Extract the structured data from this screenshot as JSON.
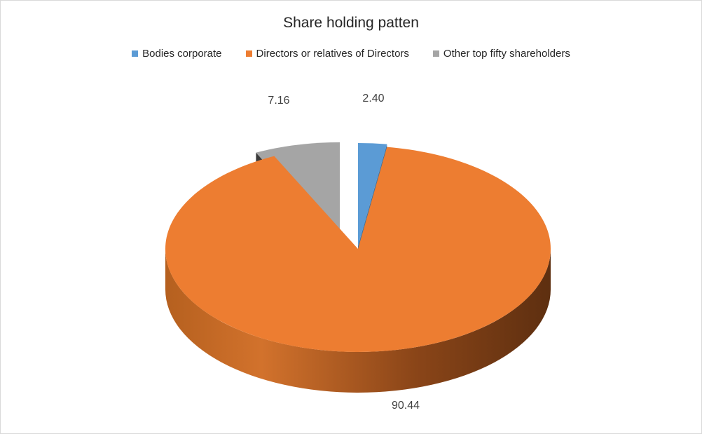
{
  "chart_data": {
    "type": "pie",
    "title": "Share holding patten",
    "categories": [
      "Bodies corporate",
      "Directors or relatives of Directors",
      "Other top fifty shareholders"
    ],
    "values": [
      2.4,
      90.44,
      7.16
    ],
    "data_labels": [
      "2.40",
      "90.44",
      "7.16"
    ],
    "colors": [
      "#5b9bd5",
      "#ed7d31",
      "#a5a5a5"
    ],
    "side_colors": [
      "#41719c",
      "#a8541c",
      "#3a3a3a"
    ],
    "style": "3d-exploded",
    "legend_position": "top"
  }
}
